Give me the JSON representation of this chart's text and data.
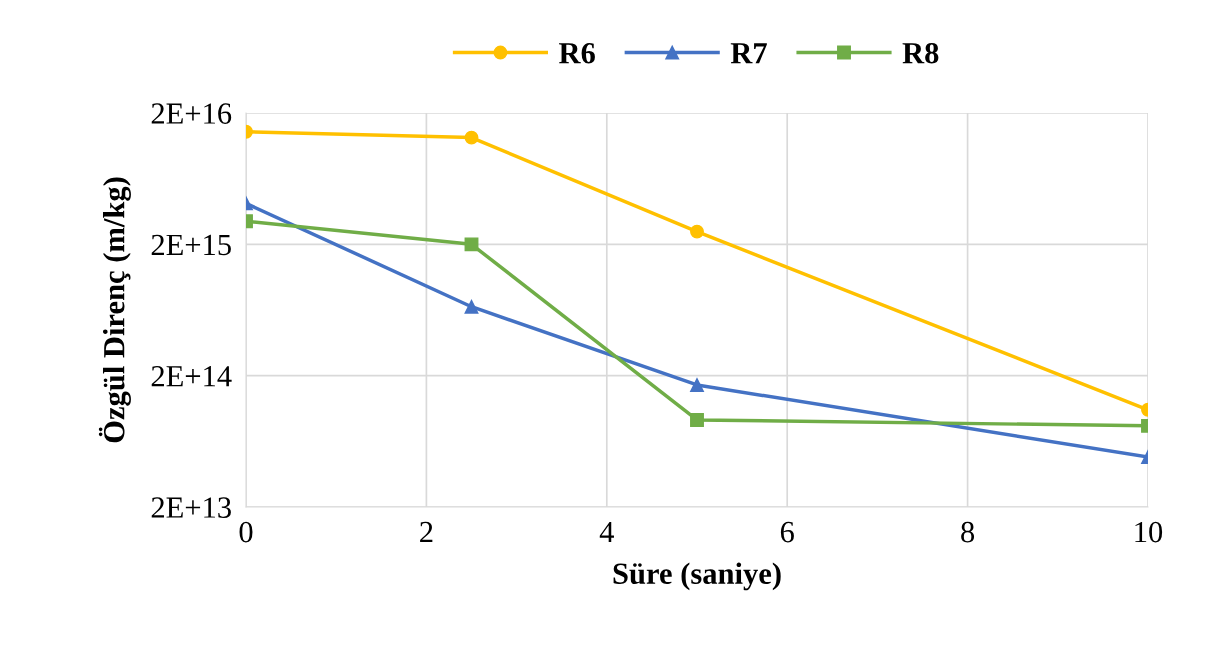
{
  "chart_data": {
    "type": "line",
    "xlabel": "Süre (saniye)",
    "ylabel": "Özgül Direnç (m/kg)",
    "x": [
      0,
      2.5,
      5,
      10
    ],
    "series": [
      {
        "name": "R6",
        "color": "#ffc000",
        "values": [
          1.44e+16,
          1.3e+16,
          2500000000000000.0,
          110000000000000.0
        ],
        "marker": "circle"
      },
      {
        "name": "R7",
        "color": "#4472c4",
        "values": [
          4100000000000000.0,
          670000000000000.0,
          170000000000000.0,
          48000000000000.0
        ],
        "marker": "triangle"
      },
      {
        "name": "R8",
        "color": "#70ad47",
        "values": [
          3000000000000000.0,
          2000000000000000.0,
          92000000000000.0,
          83000000000000.0
        ],
        "marker": "square"
      }
    ],
    "log": "y",
    "xlim": [
      0,
      10
    ],
    "xticks": [
      0,
      2,
      4,
      6,
      8,
      10
    ],
    "ylim": [
      20000000000000.0,
      2e+16
    ],
    "yticks": [
      {
        "value": 20000000000000.0,
        "label": "2E+13"
      },
      {
        "value": 200000000000000.0,
        "label": "2E+14"
      },
      {
        "value": 2000000000000000.0,
        "label": "2E+15"
      },
      {
        "value": 2e+16,
        "label": "2E+16"
      }
    ],
    "grid": true,
    "legend": "top",
    "line_style": "solid"
  }
}
